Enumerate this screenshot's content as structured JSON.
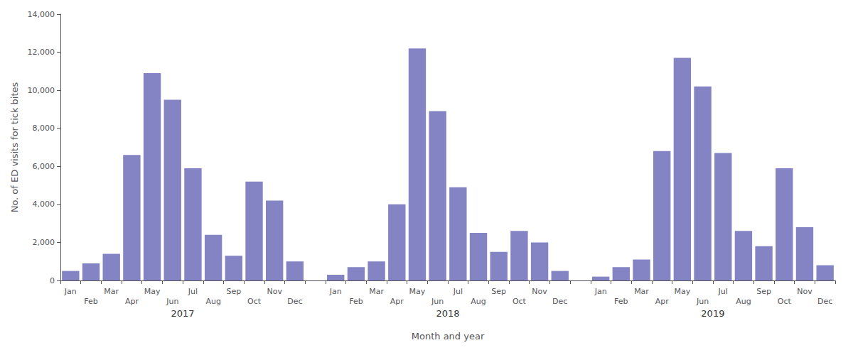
{
  "chart_data": {
    "type": "bar",
    "categories": [
      "Jan",
      "Feb",
      "Mar",
      "Apr",
      "May",
      "Jun",
      "Jul",
      "Aug",
      "Sep",
      "Oct",
      "Nov",
      "Dec",
      "Jan",
      "Feb",
      "Mar",
      "Apr",
      "May",
      "Jun",
      "Jul",
      "Aug",
      "Sep",
      "Oct",
      "Nov",
      "Dec",
      "Jan",
      "Feb",
      "Mar",
      "Apr",
      "May",
      "Jun",
      "Jul",
      "Aug",
      "Sep",
      "Oct",
      "Nov",
      "Dec"
    ],
    "values": [
      500,
      900,
      1400,
      6600,
      10900,
      9500,
      5900,
      2400,
      1300,
      5200,
      4200,
      1000,
      300,
      700,
      1000,
      4000,
      12200,
      8900,
      4900,
      2500,
      1500,
      2600,
      2000,
      500,
      200,
      700,
      1100,
      6800,
      11700,
      10200,
      6700,
      2600,
      1800,
      5900,
      2800,
      800
    ],
    "groups": [
      "2017",
      "2018",
      "2019"
    ],
    "color": "#8484C4",
    "xlabel": "Month and year",
    "ylabel": "No. of ED visits for tick bites",
    "ylim": [
      0,
      14000
    ],
    "yticks": [
      0,
      {
        "value": 2000,
        "label": "2,000"
      },
      {
        "value": 4000,
        "label": "4,000"
      },
      {
        "value": 6000,
        "label": "6,000"
      },
      {
        "value": 8000,
        "label": "8,000"
      },
      {
        "value": 10000,
        "label": "10,000"
      },
      {
        "value": 12000,
        "label": "12,000"
      },
      {
        "value": 14000,
        "label": "14,000"
      }
    ],
    "grid": false
  }
}
